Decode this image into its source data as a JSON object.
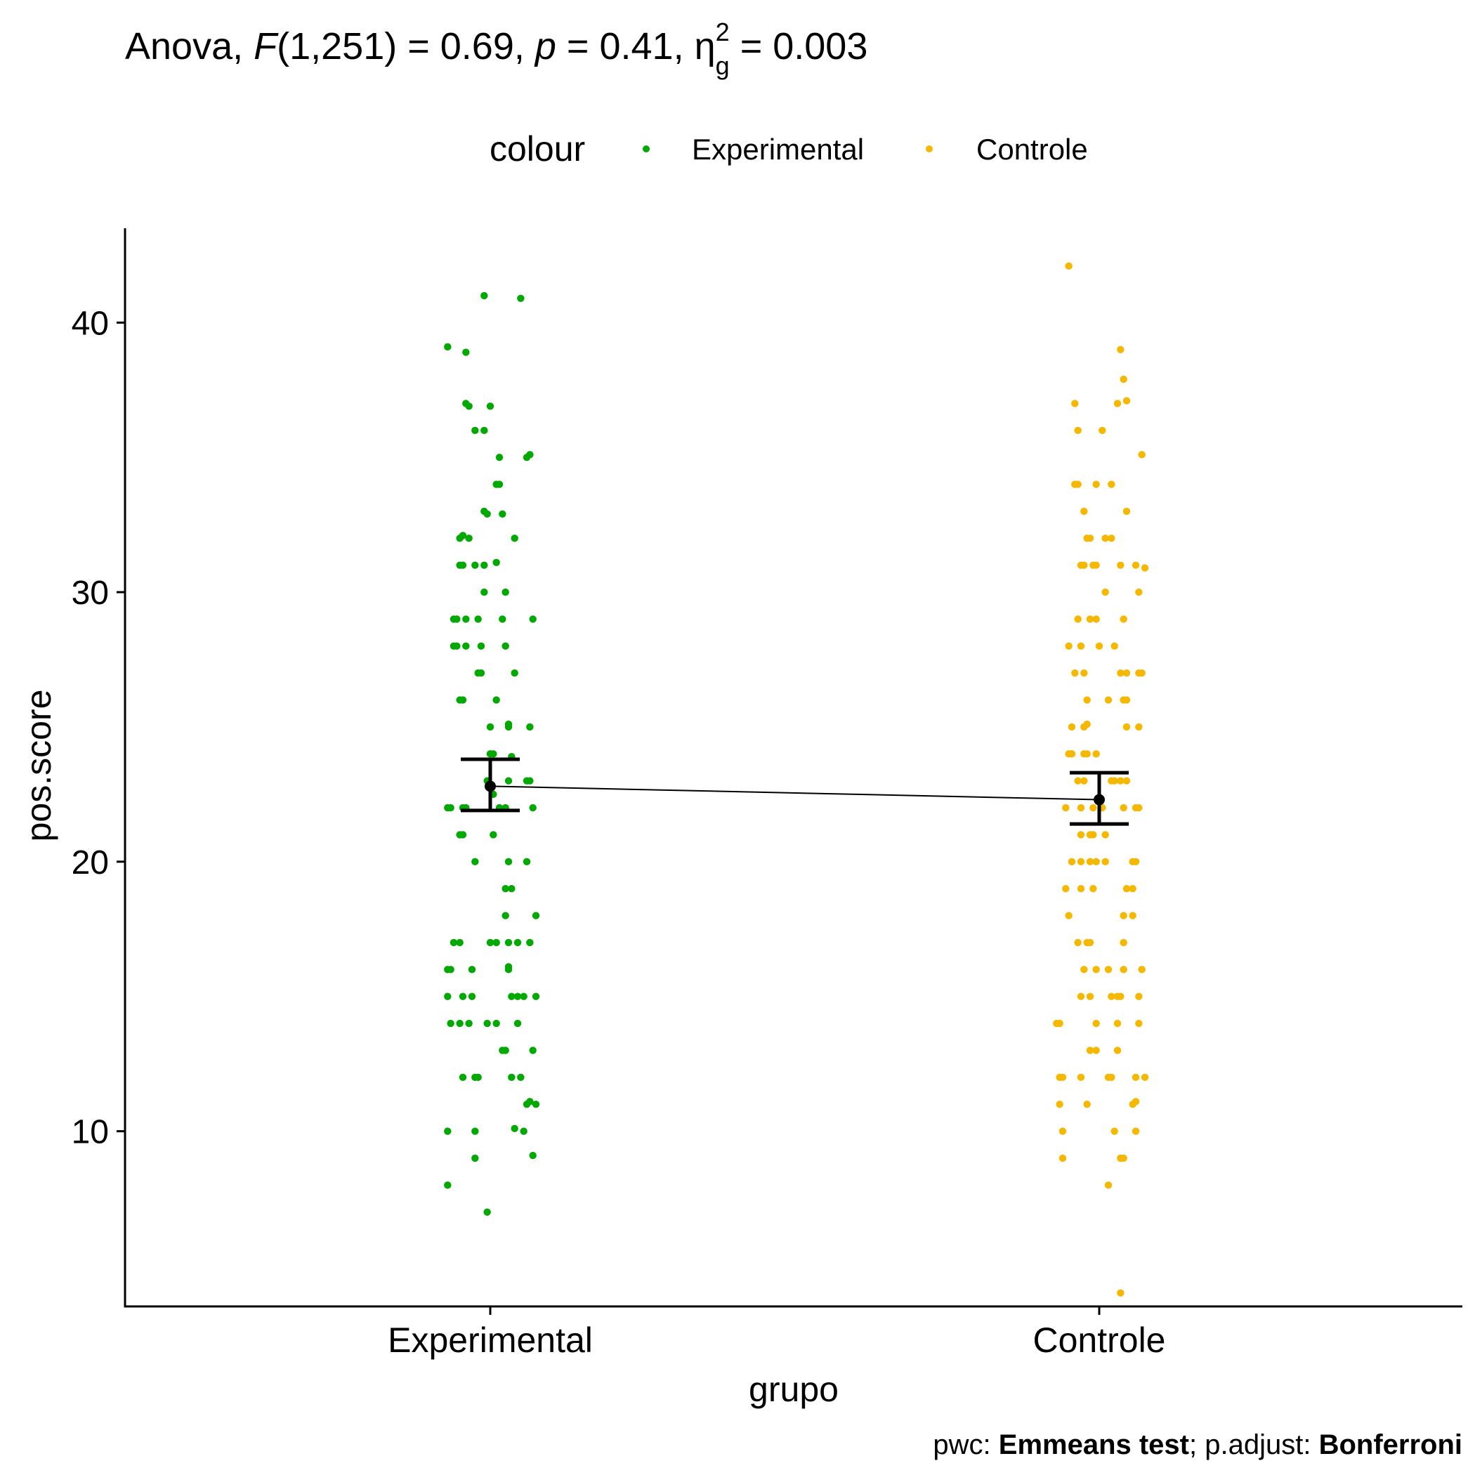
{
  "chart_data": {
    "type": "scatter",
    "title_parts": {
      "prefix": "Anova, ",
      "F_symbol": "F",
      "F_df": "(1,251) = 0.69, ",
      "p_symbol": "p",
      "p_value": " = 0.41, ",
      "eta_symbol": "η",
      "eta_sub": "g",
      "eta_sup": "2",
      "eta_value": " = 0.003"
    },
    "legend": {
      "title": "colour",
      "position": "top",
      "entries": [
        {
          "label": "Experimental",
          "color": "#00a800"
        },
        {
          "label": "Controle",
          "color": "#f5b800"
        }
      ]
    },
    "xlabel": "grupo",
    "ylabel": "pos.score",
    "categories": [
      "Experimental",
      "Controle"
    ],
    "ylim": [
      3.5,
      43.5
    ],
    "yticks": [
      10,
      20,
      30,
      40
    ],
    "grid": false,
    "series": [
      {
        "name": "Experimental",
        "color": "#00a800",
        "mean": 22.8,
        "ci": [
          21.9,
          23.8
        ],
        "points": [
          [
            -0.01,
            41
          ],
          [
            0.05,
            40.9
          ],
          [
            -0.07,
            39.1
          ],
          [
            -0.04,
            38.9
          ],
          [
            -0.04,
            37
          ],
          [
            -0.035,
            36.9
          ],
          [
            0,
            36.9
          ],
          [
            -0.025,
            36
          ],
          [
            -0.01,
            36
          ],
          [
            0.01,
            34
          ],
          [
            0.015,
            34
          ],
          [
            0.06,
            35
          ],
          [
            0.065,
            35.1
          ],
          [
            0.015,
            35
          ],
          [
            -0.01,
            33
          ],
          [
            -0.005,
            32.9
          ],
          [
            0.02,
            32.9
          ],
          [
            0.04,
            32
          ],
          [
            -0.05,
            32
          ],
          [
            -0.045,
            32.1
          ],
          [
            -0.035,
            32
          ],
          [
            -0.05,
            31
          ],
          [
            -0.045,
            31
          ],
          [
            -0.025,
            31
          ],
          [
            -0.01,
            31
          ],
          [
            0.01,
            31.1
          ],
          [
            0.025,
            30
          ],
          [
            -0.01,
            30
          ],
          [
            -0.055,
            29
          ],
          [
            -0.06,
            29
          ],
          [
            -0.04,
            29
          ],
          [
            -0.02,
            29
          ],
          [
            0.02,
            29
          ],
          [
            0.07,
            29
          ],
          [
            -0.06,
            28
          ],
          [
            -0.055,
            28
          ],
          [
            -0.04,
            28
          ],
          [
            -0.015,
            28
          ],
          [
            0.025,
            28
          ],
          [
            -0.02,
            27
          ],
          [
            -0.015,
            27
          ],
          [
            0.04,
            27
          ],
          [
            -0.05,
            26
          ],
          [
            -0.045,
            26
          ],
          [
            0.01,
            26
          ],
          [
            0,
            25
          ],
          [
            0.03,
            25
          ],
          [
            0.03,
            25.1
          ],
          [
            0.065,
            25
          ],
          [
            0.0,
            24
          ],
          [
            0.005,
            24
          ],
          [
            0.035,
            23.9
          ],
          [
            -0.005,
            23
          ],
          [
            0.06,
            23
          ],
          [
            0.065,
            23
          ],
          [
            0.03,
            23
          ],
          [
            0.005,
            22.5
          ],
          [
            -0.07,
            22
          ],
          [
            -0.065,
            22
          ],
          [
            -0.045,
            22
          ],
          [
            -0.04,
            22
          ],
          [
            0.015,
            22
          ],
          [
            0.025,
            22
          ],
          [
            0.07,
            22
          ],
          [
            -0.045,
            21
          ],
          [
            -0.05,
            21
          ],
          [
            0.005,
            21
          ],
          [
            -0.025,
            20
          ],
          [
            0.03,
            20
          ],
          [
            0.06,
            20
          ],
          [
            0.025,
            19
          ],
          [
            0.035,
            19
          ],
          [
            0.025,
            18
          ],
          [
            0.075,
            18
          ],
          [
            -0.06,
            17
          ],
          [
            -0.05,
            17
          ],
          [
            0.0,
            17
          ],
          [
            0.01,
            17
          ],
          [
            0.03,
            17
          ],
          [
            0.045,
            17
          ],
          [
            0.065,
            17
          ],
          [
            -0.07,
            16
          ],
          [
            -0.065,
            16
          ],
          [
            -0.03,
            16
          ],
          [
            0.03,
            16
          ],
          [
            0.03,
            16.1
          ],
          [
            -0.07,
            15
          ],
          [
            -0.045,
            15
          ],
          [
            -0.03,
            15
          ],
          [
            0.035,
            15
          ],
          [
            0.045,
            15
          ],
          [
            0.055,
            15
          ],
          [
            0.075,
            15
          ],
          [
            -0.065,
            14
          ],
          [
            -0.05,
            14
          ],
          [
            -0.035,
            14
          ],
          [
            -0.005,
            14
          ],
          [
            0.01,
            14
          ],
          [
            0.045,
            14
          ],
          [
            0.02,
            13
          ],
          [
            0.025,
            13
          ],
          [
            0.07,
            13
          ],
          [
            -0.045,
            12
          ],
          [
            -0.025,
            12
          ],
          [
            -0.02,
            12
          ],
          [
            0.035,
            12
          ],
          [
            0.05,
            12
          ],
          [
            0.06,
            11
          ],
          [
            0.065,
            11.1
          ],
          [
            0.075,
            11
          ],
          [
            -0.07,
            10
          ],
          [
            -0.025,
            10
          ],
          [
            0.04,
            10.1
          ],
          [
            0.055,
            10
          ],
          [
            -0.025,
            9
          ],
          [
            0.07,
            9.1
          ],
          [
            -0.07,
            8
          ],
          [
            -0.005,
            7
          ]
        ]
      },
      {
        "name": "Controle",
        "color": "#f5b800",
        "mean": 22.3,
        "ci": [
          21.4,
          23.3
        ],
        "points": [
          [
            -0.05,
            42.1
          ],
          [
            0.035,
            39
          ],
          [
            0.04,
            37.9
          ],
          [
            -0.04,
            37
          ],
          [
            0.03,
            37
          ],
          [
            0.045,
            37.1
          ],
          [
            -0.035,
            36
          ],
          [
            0.005,
            36
          ],
          [
            0.07,
            35.1
          ],
          [
            -0.04,
            34
          ],
          [
            -0.035,
            34
          ],
          [
            -0.005,
            34
          ],
          [
            0.02,
            34
          ],
          [
            -0.025,
            33
          ],
          [
            0.045,
            33
          ],
          [
            -0.02,
            32
          ],
          [
            -0.015,
            32
          ],
          [
            0.01,
            32
          ],
          [
            0.02,
            32
          ],
          [
            0.06,
            31
          ],
          [
            0.075,
            30.9
          ],
          [
            -0.03,
            31
          ],
          [
            -0.025,
            31
          ],
          [
            -0.01,
            31
          ],
          [
            -0.005,
            31
          ],
          [
            0.035,
            31
          ],
          [
            0.01,
            30
          ],
          [
            0.065,
            30
          ],
          [
            -0.035,
            29
          ],
          [
            -0.015,
            29
          ],
          [
            -0.005,
            29
          ],
          [
            0.04,
            29
          ],
          [
            0.025,
            28
          ],
          [
            -0.05,
            28
          ],
          [
            -0.03,
            28
          ],
          [
            0.0,
            28
          ],
          [
            -0.04,
            27
          ],
          [
            -0.025,
            27
          ],
          [
            0.035,
            27
          ],
          [
            0.045,
            27
          ],
          [
            0.065,
            27
          ],
          [
            0.07,
            27
          ],
          [
            -0.02,
            26
          ],
          [
            0.015,
            26
          ],
          [
            0.04,
            26
          ],
          [
            0.045,
            26
          ],
          [
            -0.045,
            25
          ],
          [
            -0.025,
            25
          ],
          [
            -0.02,
            25.1
          ],
          [
            0.045,
            25
          ],
          [
            0.065,
            25
          ],
          [
            -0.05,
            24
          ],
          [
            -0.045,
            24
          ],
          [
            -0.025,
            24
          ],
          [
            -0.02,
            24
          ],
          [
            -0.005,
            24
          ],
          [
            -0.035,
            23
          ],
          [
            -0.025,
            23
          ],
          [
            0.02,
            23
          ],
          [
            0.025,
            23
          ],
          [
            0.035,
            23
          ],
          [
            0.045,
            23
          ],
          [
            0.0,
            22.3
          ],
          [
            -0.055,
            22
          ],
          [
            -0.03,
            22
          ],
          [
            -0.01,
            22
          ],
          [
            0.005,
            22
          ],
          [
            0.04,
            22
          ],
          [
            0.06,
            22
          ],
          [
            0.065,
            22
          ],
          [
            -0.03,
            21
          ],
          [
            -0.015,
            21
          ],
          [
            -0.01,
            21
          ],
          [
            0.01,
            21
          ],
          [
            -0.045,
            20
          ],
          [
            -0.03,
            20
          ],
          [
            -0.015,
            20
          ],
          [
            -0.005,
            20
          ],
          [
            0.01,
            20
          ],
          [
            0.055,
            20
          ],
          [
            0.06,
            20
          ],
          [
            -0.055,
            19
          ],
          [
            -0.03,
            19
          ],
          [
            -0.01,
            19
          ],
          [
            0.045,
            19
          ],
          [
            0.055,
            19
          ],
          [
            -0.05,
            18
          ],
          [
            0.04,
            18
          ],
          [
            0.055,
            18
          ],
          [
            -0.035,
            17
          ],
          [
            -0.02,
            17
          ],
          [
            -0.015,
            17
          ],
          [
            0.04,
            17
          ],
          [
            -0.025,
            16
          ],
          [
            -0.005,
            16
          ],
          [
            0.015,
            16
          ],
          [
            0.04,
            16
          ],
          [
            0.07,
            16
          ],
          [
            -0.03,
            15
          ],
          [
            -0.015,
            15
          ],
          [
            0.02,
            15
          ],
          [
            0.03,
            15
          ],
          [
            0.035,
            15
          ],
          [
            0.065,
            15
          ],
          [
            -0.07,
            14
          ],
          [
            -0.065,
            14
          ],
          [
            -0.005,
            14
          ],
          [
            0.03,
            14
          ],
          [
            0.065,
            14
          ],
          [
            -0.015,
            13
          ],
          [
            -0.005,
            13
          ],
          [
            0.03,
            13
          ],
          [
            -0.065,
            12
          ],
          [
            -0.06,
            12
          ],
          [
            -0.03,
            12
          ],
          [
            0.015,
            12
          ],
          [
            0.02,
            12
          ],
          [
            0.06,
            12
          ],
          [
            0.075,
            12
          ],
          [
            -0.065,
            11
          ],
          [
            -0.02,
            11
          ],
          [
            0.055,
            11
          ],
          [
            0.06,
            11.1
          ],
          [
            -0.06,
            10
          ],
          [
            0.025,
            10
          ],
          [
            0.06,
            10
          ],
          [
            -0.06,
            9
          ],
          [
            0.035,
            9
          ],
          [
            0.04,
            9
          ],
          [
            0.015,
            8
          ],
          [
            0.035,
            4
          ]
        ]
      }
    ]
  },
  "caption": {
    "pwc_label": "pwc: ",
    "pwc_value": "Emmeans test",
    "sep": "; p.adjust: ",
    "adjust_value": "Bonferroni"
  }
}
